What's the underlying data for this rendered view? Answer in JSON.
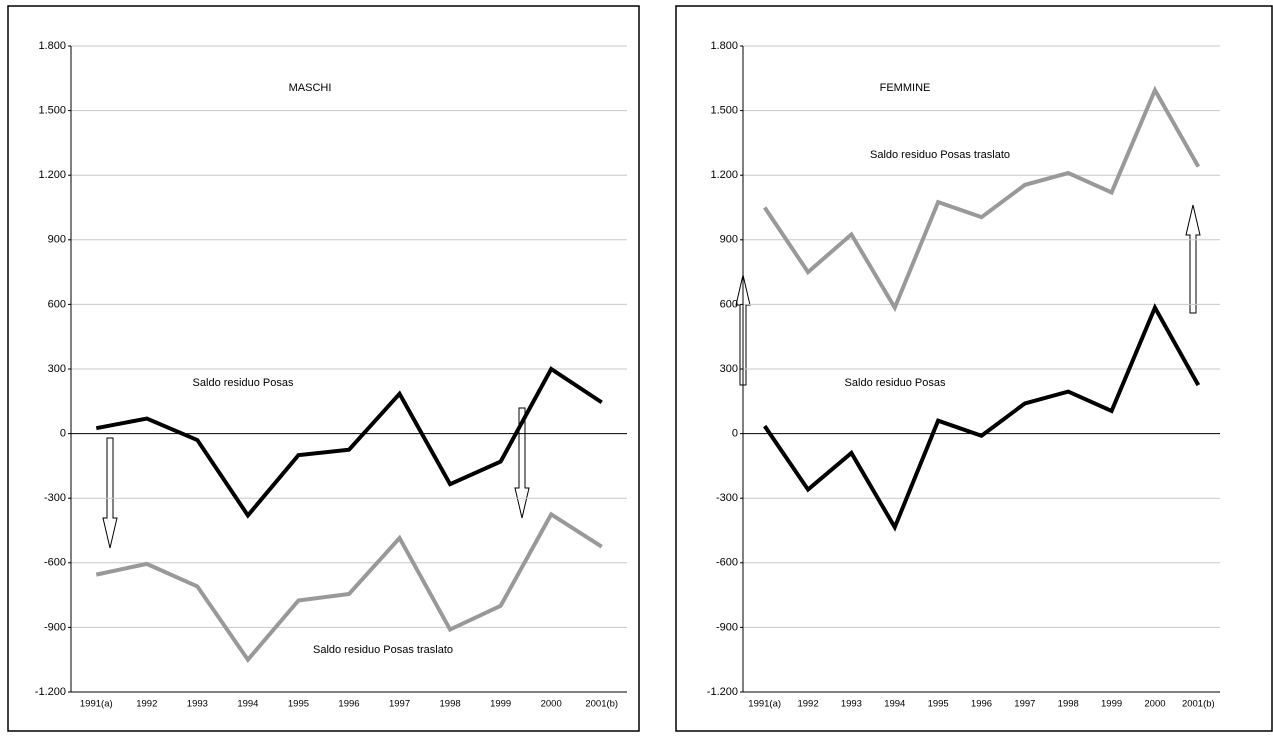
{
  "chart_data": [
    {
      "type": "line",
      "title": "MASCHI",
      "categories": [
        "1991(a)",
        "1992",
        "1993",
        "1994",
        "1995",
        "1996",
        "1997",
        "1998",
        "1999",
        "2000",
        "2001(b)"
      ],
      "series": [
        {
          "name": "Saldo residuo Posas",
          "color": "#000000",
          "values": [
            25,
            70,
            -30,
            -380,
            -100,
            -75,
            185,
            -235,
            -130,
            300,
            145
          ]
        },
        {
          "name": "Saldo residuo Posas traslato",
          "color": "#999999",
          "values": [
            -655,
            -605,
            -710,
            -1050,
            -775,
            -745,
            -485,
            -910,
            -800,
            -375,
            -525
          ]
        }
      ],
      "ylim": [
        -1200,
        1800
      ],
      "yticks": [
        {
          "value": -1200,
          "label": "-1.200"
        },
        -900,
        -600,
        -300,
        0,
        300,
        600,
        900,
        {
          "value": 1200,
          "label": "1.200"
        },
        {
          "value": 1500,
          "label": "1.500"
        },
        {
          "value": 1800,
          "label": "1.800"
        }
      ],
      "grid": true
    },
    {
      "type": "line",
      "title": "FEMMINE",
      "categories": [
        "1991(a)",
        "1992",
        "1993",
        "1994",
        "1995",
        "1996",
        "1997",
        "1998",
        "1999",
        "2000",
        "2001(b)"
      ],
      "series": [
        {
          "name": "Saldo residuo Posas",
          "color": "#000000",
          "values": [
            35,
            -260,
            -90,
            -435,
            60,
            -10,
            140,
            195,
            105,
            585,
            225
          ]
        },
        {
          "name": "Saldo residuo Posas traslato",
          "color": "#999999",
          "values": [
            1050,
            750,
            925,
            585,
            1075,
            1005,
            1155,
            1210,
            1120,
            1595,
            1240
          ]
        }
      ],
      "ylim": [
        -1200,
        1800
      ],
      "yticks": [
        {
          "value": -1200,
          "label": "-1.200"
        },
        -900,
        -600,
        -300,
        0,
        300,
        600,
        900,
        {
          "value": 1200,
          "label": "1.200"
        },
        {
          "value": 1500,
          "label": "1.500"
        },
        {
          "value": 1800,
          "label": "1.800"
        }
      ],
      "grid": true
    }
  ]
}
